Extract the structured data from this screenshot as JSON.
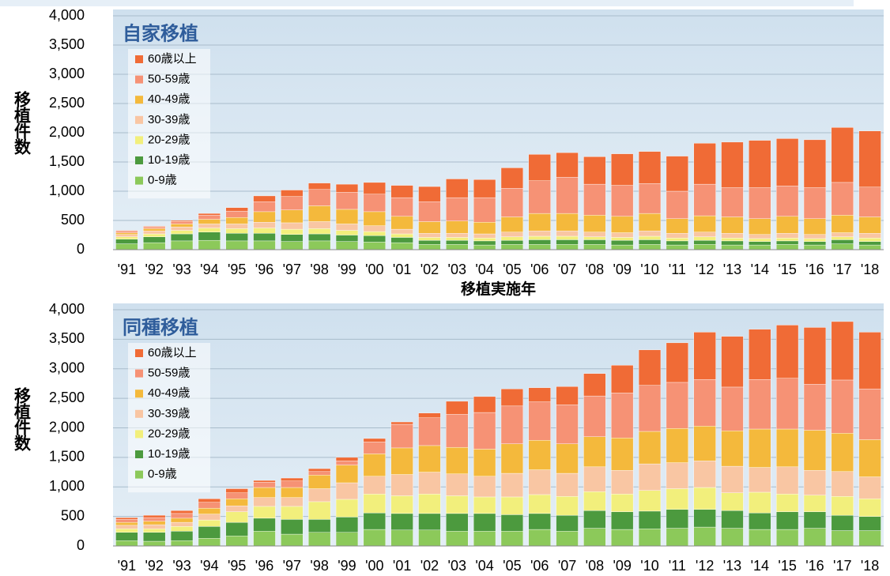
{
  "chart_data": [
    {
      "type": "bar",
      "stacked": true,
      "title": "自家移植",
      "ylabel": "移植件数",
      "xlabel": "移植実施年",
      "categories": [
        "'91",
        "'92",
        "'93",
        "'94",
        "'95",
        "'96",
        "'97",
        "'98",
        "'99",
        "'00",
        "'01",
        "'02",
        "'03",
        "'04",
        "'05",
        "'06",
        "'07",
        "'08",
        "'09",
        "'10",
        "'11",
        "'12",
        "'13",
        "'14",
        "'15",
        "'16",
        "'17",
        "'18"
      ],
      "series": [
        {
          "name": "0-9歳",
          "color": "#8cc95a",
          "values": [
            100,
            120,
            150,
            160,
            150,
            150,
            140,
            150,
            140,
            130,
            120,
            90,
            90,
            80,
            90,
            90,
            90,
            90,
            80,
            90,
            80,
            90,
            80,
            80,
            90,
            80,
            100,
            80
          ]
        },
        {
          "name": "10-19歳",
          "color": "#4c9a3e",
          "values": [
            80,
            100,
            120,
            140,
            130,
            130,
            120,
            120,
            110,
            110,
            90,
            70,
            70,
            70,
            70,
            80,
            80,
            80,
            80,
            80,
            70,
            70,
            70,
            60,
            60,
            60,
            70,
            60
          ]
        },
        {
          "name": "20-29歳",
          "color": "#f2ef7c",
          "values": [
            40,
            50,
            60,
            70,
            80,
            90,
            90,
            90,
            80,
            70,
            60,
            50,
            50,
            50,
            60,
            60,
            60,
            50,
            50,
            60,
            50,
            60,
            50,
            50,
            50,
            50,
            50,
            60
          ]
        },
        {
          "name": "30-39歳",
          "color": "#f9c6a3",
          "values": [
            40,
            50,
            60,
            70,
            80,
            100,
            110,
            120,
            110,
            100,
            80,
            70,
            70,
            70,
            80,
            90,
            90,
            80,
            80,
            90,
            80,
            80,
            80,
            70,
            80,
            70,
            70,
            80
          ]
        },
        {
          "name": "40-49歳",
          "color": "#f4b93c",
          "values": [
            30,
            40,
            50,
            80,
            110,
            180,
            220,
            270,
            250,
            240,
            220,
            200,
            210,
            200,
            260,
            300,
            300,
            290,
            280,
            300,
            250,
            280,
            280,
            270,
            290,
            270,
            300,
            280
          ]
        },
        {
          "name": "50-59歳",
          "color": "#f69275",
          "values": [
            30,
            30,
            40,
            70,
            110,
            170,
            230,
            280,
            290,
            300,
            320,
            340,
            400,
            420,
            490,
            560,
            620,
            530,
            530,
            510,
            470,
            540,
            500,
            530,
            520,
            530,
            560,
            510
          ]
        },
        {
          "name": "60歳以上",
          "color": "#f06b36",
          "values": [
            10,
            10,
            20,
            30,
            60,
            100,
            110,
            110,
            140,
            200,
            210,
            260,
            320,
            310,
            350,
            450,
            420,
            470,
            540,
            550,
            600,
            700,
            780,
            810,
            810,
            820,
            940,
            960
          ]
        }
      ],
      "ylim": [
        0,
        4000
      ],
      "yticks": [
        0,
        500,
        {
          "value": 1000,
          "label": "1,000"
        },
        {
          "value": 1500,
          "label": "1,500"
        },
        {
          "value": 2000,
          "label": "2,000"
        },
        {
          "value": 2500,
          "label": "2,500"
        },
        {
          "value": 3000,
          "label": "3,000"
        },
        {
          "value": 3500,
          "label": "3,500"
        },
        {
          "value": 4000,
          "label": "4,000"
        }
      ],
      "grid": true,
      "legend": "upper left"
    },
    {
      "type": "bar",
      "stacked": true,
      "title": "同種移植",
      "ylabel": "移植件数",
      "categories": [
        "'91",
        "'92",
        "'93",
        "'94",
        "'95",
        "'96",
        "'97",
        "'98",
        "'99",
        "'00",
        "'01",
        "'02",
        "'03",
        "'04",
        "'05",
        "'06",
        "'07",
        "'08",
        "'09",
        "'10",
        "'11",
        "'12",
        "'13",
        "'14",
        "'15",
        "'16",
        "'17",
        "'18"
      ],
      "series": [
        {
          "name": "0-9歳",
          "color": "#8cc95a",
          "values": [
            90,
            80,
            90,
            130,
            170,
            250,
            200,
            230,
            230,
            280,
            270,
            270,
            250,
            250,
            250,
            280,
            250,
            300,
            280,
            290,
            300,
            320,
            300,
            280,
            280,
            300,
            260,
            260
          ]
        },
        {
          "name": "10-19歳",
          "color": "#4c9a3e",
          "values": [
            140,
            150,
            160,
            200,
            230,
            220,
            250,
            220,
            260,
            280,
            280,
            280,
            300,
            300,
            280,
            270,
            270,
            300,
            300,
            300,
            320,
            300,
            300,
            280,
            300,
            280,
            260,
            240
          ]
        },
        {
          "name": "20-29歳",
          "color": "#f2ef7c",
          "values": [
            60,
            60,
            80,
            110,
            180,
            200,
            220,
            300,
            300,
            320,
            300,
            330,
            300,
            280,
            300,
            320,
            320,
            320,
            300,
            350,
            350,
            370,
            300,
            350,
            300,
            280,
            320,
            300
          ]
        },
        {
          "name": "30-39歳",
          "color": "#f9c6a3",
          "values": [
            60,
            70,
            70,
            100,
            100,
            150,
            150,
            220,
            280,
            300,
            360,
            370,
            370,
            350,
            400,
            420,
            390,
            420,
            400,
            450,
            440,
            450,
            450,
            420,
            460,
            420,
            420,
            370
          ]
        },
        {
          "name": "40-49歳",
          "color": "#f4b93c",
          "values": [
            50,
            60,
            70,
            100,
            120,
            170,
            170,
            230,
            300,
            380,
            450,
            450,
            450,
            460,
            500,
            500,
            500,
            510,
            550,
            550,
            580,
            590,
            600,
            650,
            640,
            680,
            650,
            630
          ]
        },
        {
          "name": "50-59歳",
          "color": "#f69275",
          "values": [
            50,
            60,
            80,
            100,
            100,
            90,
            110,
            60,
            70,
            200,
            400,
            470,
            560,
            620,
            640,
            650,
            660,
            690,
            760,
            780,
            780,
            790,
            740,
            840,
            860,
            780,
            900,
            860
          ]
        },
        {
          "name": "60歳以上",
          "color": "#f06b36",
          "values": [
            30,
            40,
            50,
            60,
            70,
            30,
            50,
            50,
            60,
            60,
            40,
            80,
            220,
            270,
            290,
            240,
            310,
            380,
            470,
            600,
            670,
            800,
            860,
            850,
            900,
            960,
            990,
            960
          ]
        }
      ],
      "ylim": [
        0,
        4000
      ],
      "yticks": [
        0,
        500,
        {
          "value": 1000,
          "label": "1,000"
        },
        {
          "value": 1500,
          "label": "1,500"
        },
        {
          "value": 2000,
          "label": "2,000"
        },
        {
          "value": 2500,
          "label": "2,500"
        },
        {
          "value": 3000,
          "label": "3,000"
        },
        {
          "value": 3500,
          "label": "3,500"
        },
        {
          "value": 4000,
          "label": "4,000"
        }
      ],
      "grid": true,
      "legend": "upper left"
    }
  ]
}
